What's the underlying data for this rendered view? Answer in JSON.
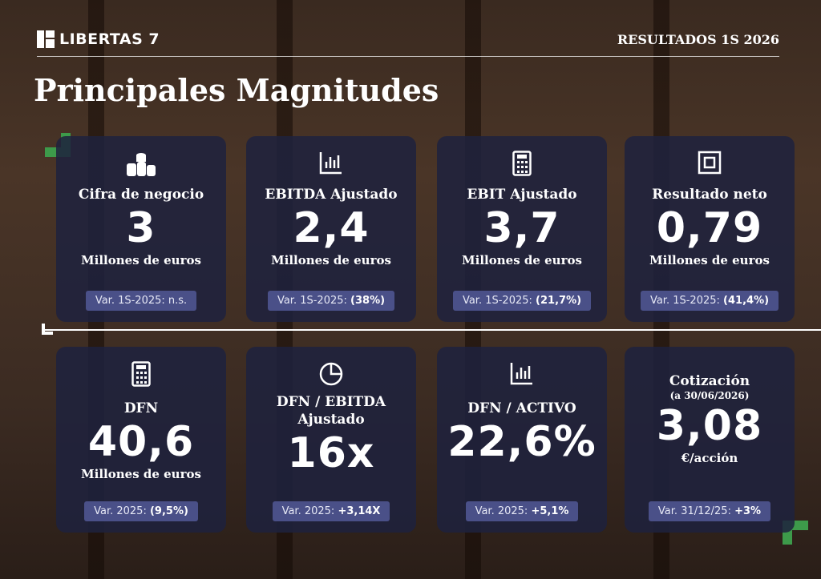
{
  "header": {
    "logo": "LIBERTAS 7",
    "report": "RESULTADOS 1S 2026",
    "title": "Principales Magnitudes"
  },
  "cards": [
    {
      "label": [
        "Cifra de negocio"
      ],
      "value": "3",
      "unit": "Millones de euros",
      "var_text": "Var. 1S-2025: n.s."
    },
    {
      "label": [
        "EBITDA Ajustado"
      ],
      "value": "2,4",
      "unit": "Millones de euros",
      "var_text": "Var. 1S-2025:",
      "var_value": "(38%)"
    },
    {
      "label": [
        "EBIT Ajustado"
      ],
      "value": "3,7",
      "unit": "Millones de euros",
      "var_text": "Var. 1S-2025:",
      "var_value": "(21,7%)"
    },
    {
      "label": [
        "Resultado neto"
      ],
      "value": "0,79",
      "unit": "Millones de euros",
      "var_text": "Var. 1S-2025:",
      "var_value": "(41,4%)"
    },
    {
      "label": [
        "DFN"
      ],
      "value": "40,6",
      "unit": "Millones de euros",
      "var_text": "Var. 2025:",
      "var_value": "(9,5%)"
    },
    {
      "label": [
        "DFN / EBITDA",
        "Ajustado"
      ],
      "value": "16x",
      "var_text": "Var. 2025:",
      "var_value": "+3,14X"
    },
    {
      "label": [
        "DFN / ACTIVO"
      ],
      "value": "22,6%",
      "var_text": "Var. 2025:",
      "var_value": "+5,1%"
    },
    {
      "label": [
        "Cotización"
      ],
      "sublabel": "(a 30/06/2026)",
      "value": "3,08",
      "unit": "€/acción",
      "var_text": "Var. 31/12/25:",
      "var_value": "+3%"
    }
  ]
}
